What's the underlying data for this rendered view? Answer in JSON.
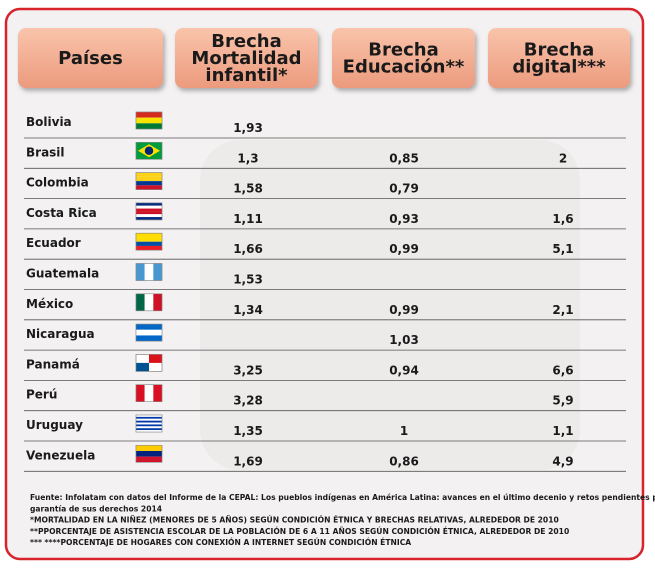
{
  "table": {
    "header": [
      [
        "Países"
      ],
      [
        "Brecha",
        "Mortalidad",
        "infantil*"
      ],
      [
        "Brecha",
        "Educación**"
      ],
      [
        "Brecha",
        "digital***"
      ]
    ],
    "rows": [
      [
        "Bolivia",
        "1,93",
        null,
        null
      ],
      [
        "Brasil",
        "1,3",
        "0,85",
        "2"
      ],
      [
        "Colombia",
        "1,58",
        "0,79",
        null
      ],
      [
        "Costa Rica",
        "1,11",
        "0,93",
        "1,6"
      ],
      [
        "Ecuador",
        "1,66",
        "0,99",
        "5,1"
      ],
      [
        "Guatemala",
        "1,53",
        null,
        null
      ],
      [
        "México",
        "1,34",
        "0,99",
        "2,1"
      ],
      [
        "Nicaragua",
        null,
        "1,03",
        null
      ],
      [
        "Panamá",
        "3,25",
        "0,94",
        "6,6"
      ],
      [
        "Perú",
        "3,28",
        null,
        "5,9"
      ],
      [
        "Uruguay",
        "1,35",
        "1",
        "1,1"
      ],
      [
        "Venezuela",
        "1,69",
        "0,86",
        "4,9"
      ]
    ]
  },
  "footer": [
    "Fuente: Infolatam con datos del Informe de la CEPAL: Los pueblos indígenas en América Latina: avances en el último decenio y retos pendientes para la",
    "garantía de sus derechos 2014",
    "*MORTALIDAD EN LA NIÑEZ (MENORES DE 5 AÑOS) SEGÚN CONDICIÓN ÉTNICA Y BRECHAS RELATIVAS, ALREDEDOR DE 2010",
    "**PPORCENTAJE DE ASISTENCIA ESCOLAR DE LA POBLACIÓN DE 6 A 11 AÑOS SEGÚN CONDICIÓN ÉTNICA, ALREDEDOR DE 2010",
    "*** ****PORCENTAJE DE HOGARES CON CONEXIÓN A INTERNET SEGÚN CONDICIÓN ÉTNICA"
  ]
}
